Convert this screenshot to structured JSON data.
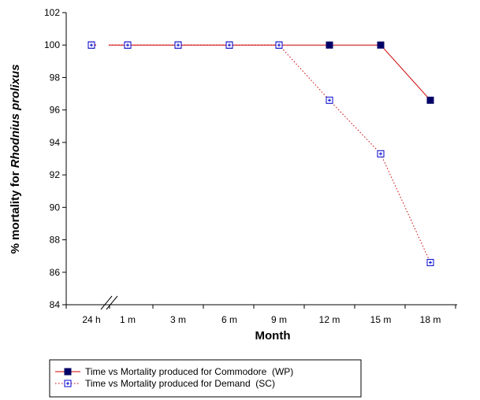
{
  "chart_data": {
    "type": "line",
    "title": "",
    "xlabel": "Month",
    "ylabel_plain": "% mortality for ",
    "ylabel_italic": "Rhodnius prolixus",
    "categories": [
      "24 h",
      "1 m",
      "3 m",
      "6 m",
      "9 m",
      "12 m",
      "15 m",
      "18 m"
    ],
    "ylim": [
      84,
      102
    ],
    "yticks": [
      84,
      86,
      88,
      90,
      92,
      94,
      96,
      98,
      100,
      102
    ],
    "grid": false,
    "axis_break": "between 24 h and 1 m",
    "legend_position": "bottom-left",
    "series": [
      {
        "name": "Time vs Mortality produced for Commodore  (WP)",
        "color": "#cc0000",
        "marker_color": "#000066",
        "line_style": "solid",
        "marker": "filled-square",
        "values": [
          100,
          100,
          100,
          100,
          100,
          100,
          100,
          96.6
        ]
      },
      {
        "name": "Time vs Mortality produced for Demand  (SC)",
        "color": "#cc0000",
        "marker_color": "#0000cc",
        "line_style": "dotted",
        "marker": "open-square-plus",
        "values": [
          100,
          100,
          100,
          100,
          100,
          96.6,
          93.3,
          86.6
        ]
      }
    ]
  }
}
